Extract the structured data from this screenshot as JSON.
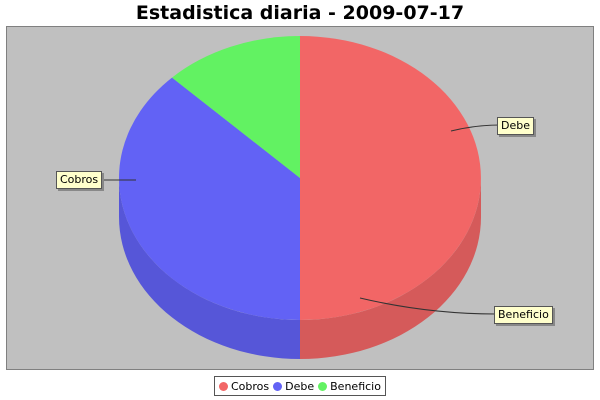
{
  "chart_data": {
    "type": "pie",
    "title": "Estadistica diaria - 2009-07-17",
    "style": "3d",
    "slices": [
      {
        "label": "Cobros",
        "value": 50,
        "color": "#f26666"
      },
      {
        "label": "Debe",
        "value": 37.5,
        "color": "#6262f5"
      },
      {
        "label": "Beneficio",
        "value": 12.5,
        "color": "#62f262"
      }
    ],
    "plot_background": "#c0c0c0",
    "legend_position": "bottom"
  }
}
